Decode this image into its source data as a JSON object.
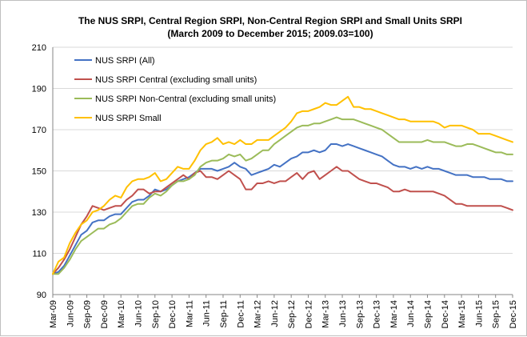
{
  "chart_data": {
    "type": "line",
    "title": "The NUS SRPI, Central Region SRPI,  Non-Central Region SRPI  and  Small Units SRPI",
    "subtitle": "(March 2009 to December 2015; 2009.03=100)",
    "xlabel": "",
    "ylabel": "",
    "ylim": [
      90,
      210
    ],
    "yticks": [
      90,
      110,
      130,
      150,
      170,
      190,
      210
    ],
    "grid": true,
    "legend_position": "top-left",
    "x": [
      "Mar-09",
      "Apr-09",
      "May-09",
      "Jun-09",
      "Jul-09",
      "Aug-09",
      "Sep-09",
      "Oct-09",
      "Nov-09",
      "Dec-09",
      "Jan-10",
      "Feb-10",
      "Mar-10",
      "Apr-10",
      "May-10",
      "Jun-10",
      "Jul-10",
      "Aug-10",
      "Sep-10",
      "Oct-10",
      "Nov-10",
      "Dec-10",
      "Jan-11",
      "Feb-11",
      "Mar-11",
      "Apr-11",
      "May-11",
      "Jun-11",
      "Jul-11",
      "Aug-11",
      "Sep-11",
      "Oct-11",
      "Nov-11",
      "Dec-11",
      "Jan-12",
      "Feb-12",
      "Mar-12",
      "Apr-12",
      "May-12",
      "Jun-12",
      "Jul-12",
      "Aug-12",
      "Sep-12",
      "Oct-12",
      "Nov-12",
      "Dec-12",
      "Jan-13",
      "Feb-13",
      "Mar-13",
      "Apr-13",
      "May-13",
      "Jun-13",
      "Jul-13",
      "Aug-13",
      "Sep-13",
      "Oct-13",
      "Nov-13",
      "Dec-13",
      "Jan-14",
      "Feb-14",
      "Mar-14",
      "Apr-14",
      "May-14",
      "Jun-14",
      "Jul-14",
      "Aug-14",
      "Sep-14",
      "Oct-14",
      "Nov-14",
      "Dec-14",
      "Jan-15",
      "Feb-15",
      "Mar-15",
      "Apr-15",
      "May-15",
      "Jun-15",
      "Jul-15",
      "Aug-15",
      "Sep-15",
      "Oct-15",
      "Nov-15",
      "Dec-15"
    ],
    "x_tick_labels": [
      "Mar-09",
      "Jun-09",
      "Sep-09",
      "Dec-09",
      "Mar-10",
      "Jun-10",
      "Sep-10",
      "Dec-10",
      "Mar-11",
      "Jun-11",
      "Sep-11",
      "Dec-11",
      "Mar-12",
      "Jun-12",
      "Sep-12",
      "Dec-12",
      "Mar-13",
      "Jun-13",
      "Sep-13",
      "Dec-13",
      "Mar-14",
      "Jun-14",
      "Sep-14",
      "Dec-14",
      "Mar-15",
      "Jun-15",
      "Sep-15",
      "Dec-15"
    ],
    "series": [
      {
        "name": "NUS SRPI (All)",
        "color": "#4472c4",
        "values": [
          100,
          101,
          104,
          109,
          114,
          119,
          121,
          125,
          126,
          126,
          128,
          129,
          129,
          132,
          135,
          136,
          136,
          138,
          141,
          140,
          141,
          143,
          145,
          146,
          147,
          149,
          151,
          151,
          151,
          150,
          151,
          152,
          154,
          152,
          151,
          148,
          149,
          150,
          151,
          153,
          152,
          154,
          156,
          157,
          159,
          159,
          160,
          159,
          160,
          163,
          163,
          162,
          163,
          162,
          161,
          160,
          159,
          158,
          157,
          155,
          153,
          152,
          152,
          151,
          152,
          151,
          152,
          151,
          151,
          150,
          149,
          148,
          148,
          148,
          147,
          147,
          147,
          146,
          146,
          146,
          145,
          145
        ]
      },
      {
        "name": "NUS SRPI Central (excluding small units)",
        "color": "#c0504d",
        "values": [
          100,
          103,
          107,
          112,
          118,
          124,
          128,
          133,
          132,
          131,
          132,
          133,
          133,
          136,
          138,
          141,
          141,
          139,
          140,
          140,
          142,
          144,
          146,
          148,
          146,
          149,
          150,
          147,
          147,
          146,
          148,
          150,
          148,
          146,
          141,
          141,
          144,
          144,
          145,
          144,
          145,
          145,
          147,
          149,
          146,
          149,
          150,
          146,
          148,
          150,
          152,
          150,
          150,
          148,
          146,
          145,
          144,
          144,
          143,
          142,
          140,
          140,
          141,
          140,
          140,
          140,
          140,
          140,
          139,
          138,
          136,
          134,
          134,
          133,
          133,
          133,
          133,
          133,
          133,
          133,
          132,
          131
        ]
      },
      {
        "name": "NUS SRPI Non-Central (excluding small units)",
        "color": "#9bbb59",
        "values": [
          100,
          100,
          103,
          107,
          112,
          116,
          118,
          120,
          122,
          122,
          124,
          125,
          127,
          130,
          133,
          134,
          134,
          137,
          139,
          138,
          140,
          143,
          145,
          145,
          146,
          148,
          152,
          154,
          155,
          155,
          156,
          158,
          157,
          158,
          155,
          156,
          158,
          160,
          160,
          163,
          165,
          167,
          169,
          171,
          172,
          172,
          173,
          173,
          174,
          175,
          176,
          175,
          175,
          175,
          174,
          173,
          172,
          171,
          170,
          168,
          166,
          164,
          164,
          164,
          164,
          164,
          165,
          164,
          164,
          164,
          163,
          162,
          162,
          163,
          163,
          162,
          161,
          160,
          159,
          159,
          158,
          158
        ]
      },
      {
        "name": "NUS SRPI Small",
        "color": "#ffc000",
        "values": [
          100,
          106,
          108,
          115,
          120,
          124,
          126,
          130,
          131,
          133,
          136,
          138,
          137,
          142,
          145,
          146,
          146,
          147,
          149,
          145,
          146,
          149,
          152,
          151,
          151,
          155,
          160,
          163,
          164,
          166,
          163,
          164,
          163,
          165,
          163,
          163,
          165,
          165,
          165,
          167,
          169,
          171,
          174,
          178,
          179,
          179,
          180,
          181,
          183,
          182,
          182,
          184,
          186,
          181,
          181,
          180,
          180,
          179,
          178,
          177,
          176,
          175,
          175,
          174,
          174,
          174,
          174,
          174,
          173,
          171,
          172,
          172,
          172,
          171,
          170,
          168,
          168,
          168,
          167,
          166,
          165,
          164
        ]
      }
    ]
  }
}
